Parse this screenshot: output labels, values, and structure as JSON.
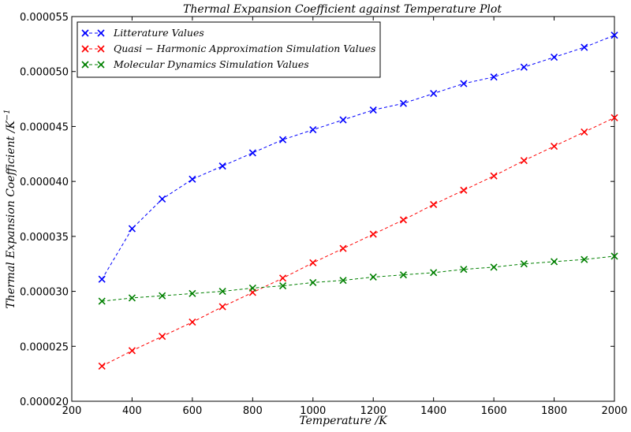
{
  "chart_data": {
    "type": "line",
    "title": "Thermal Expansion Coefficient against Temperature Plot",
    "xlabel": "Temperature /K",
    "ylabel": "Thermal Expansion Coefficient /K^-1",
    "ylabel_base": "Thermal Expansion Coefficient /K",
    "ylabel_sup": "−1",
    "xlim": [
      200,
      2000
    ],
    "ylim": [
      2e-05,
      5.5e-05
    ],
    "x_ticks": [
      "200",
      "400",
      "600",
      "800",
      "1000",
      "1200",
      "1400",
      "1600",
      "1800",
      "2000"
    ],
    "y_ticks": [
      "0.000020",
      "0.000025",
      "0.000030",
      "0.000035",
      "0.000040",
      "0.000045",
      "0.000050",
      "0.000055"
    ],
    "x_tick_values": [
      200,
      400,
      600,
      800,
      1000,
      1200,
      1400,
      1600,
      1800,
      2000
    ],
    "y_tick_values": [
      2e-05,
      2.5e-05,
      3e-05,
      3.5e-05,
      4e-05,
      4.5e-05,
      5e-05,
      5.5e-05
    ],
    "legend_position": "top-left",
    "grid": false,
    "x": [
      300,
      400,
      500,
      600,
      700,
      800,
      900,
      1000,
      1100,
      1200,
      1300,
      1400,
      1500,
      1600,
      1700,
      1800,
      1900,
      2000
    ],
    "series": [
      {
        "name": "Litterature Values",
        "color": "#0000ff",
        "values": [
          3.11e-05,
          3.57e-05,
          3.84e-05,
          4.02e-05,
          4.14e-05,
          4.26e-05,
          4.38e-05,
          4.47e-05,
          4.56e-05,
          4.65e-05,
          4.71e-05,
          4.8e-05,
          4.89e-05,
          4.95e-05,
          5.04e-05,
          5.13e-05,
          5.22e-05,
          5.33e-05
        ]
      },
      {
        "name": "Quasi − Harmonic Approximation Simulation Values",
        "color": "#ff0000",
        "values": [
          2.32e-05,
          2.46e-05,
          2.59e-05,
          2.72e-05,
          2.86e-05,
          2.99e-05,
          3.12e-05,
          3.26e-05,
          3.39e-05,
          3.52e-05,
          3.65e-05,
          3.79e-05,
          3.92e-05,
          4.05e-05,
          4.19e-05,
          4.32e-05,
          4.45e-05,
          4.58e-05
        ]
      },
      {
        "name": "Molecular Dynamics Simulation Values",
        "color": "#008000",
        "values": [
          2.91e-05,
          2.94e-05,
          2.96e-05,
          2.98e-05,
          3e-05,
          3.03e-05,
          3.05e-05,
          3.08e-05,
          3.1e-05,
          3.13e-05,
          3.15e-05,
          3.17e-05,
          3.2e-05,
          3.22e-05,
          3.25e-05,
          3.27e-05,
          3.29e-05,
          3.32e-05
        ]
      }
    ]
  }
}
